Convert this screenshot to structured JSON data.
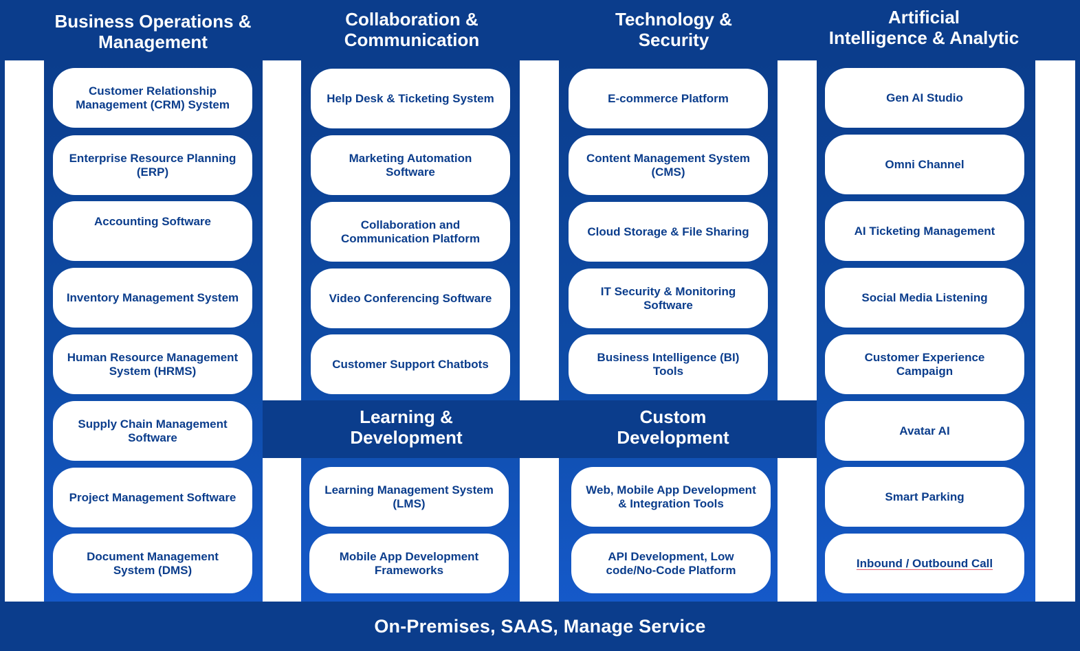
{
  "columns": {
    "business": {
      "title": "Business Operations &\nManagement",
      "items": [
        "Customer Relationship Management (CRM) System",
        "Enterprise Resource Planning (ERP)",
        "Accounting Software",
        "Inventory Management System",
        "Human Resource Management System (HRMS)",
        "Supply Chain Management Software",
        "Project Management Software",
        "Document Management System (DMS)"
      ]
    },
    "collaboration": {
      "title": "Collaboration &\nCommunication",
      "items": [
        "Help Desk & Ticketing System",
        "Marketing Automation Software",
        "Collaboration and Communication Platform",
        "Video Conferencing Software",
        "Customer Support Chatbots"
      ]
    },
    "technology": {
      "title": "Technology &\nSecurity",
      "items": [
        "E-commerce Platform",
        "Content Management System (CMS)",
        "Cloud Storage & File Sharing",
        "IT Security & Monitoring Software",
        "Business Intelligence (BI) Tools"
      ]
    },
    "ai": {
      "title": "Artificial\nIntelligence & Analytic",
      "items": [
        "Gen AI Studio",
        "Omni Channel",
        "AI Ticketing Management",
        "Social Media Listening",
        "Customer Experience Campaign",
        "Avatar AI",
        "Smart Parking",
        "Inbound / Outbound Call"
      ]
    }
  },
  "learning": {
    "title": "Learning &\nDevelopment",
    "items": [
      "Learning Management System (LMS)",
      "Mobile App Development Frameworks"
    ]
  },
  "custom": {
    "title": "Custom\nDevelopment",
    "items": [
      "Web, Mobile App Development & Integration Tools",
      "API Development, Low code/No-Code Platform"
    ]
  },
  "footer": {
    "text": "On-Premises, SAAS, Manage Service"
  },
  "colors": {
    "primary": "#0b3d8c",
    "strip_bottom": "#1559c9",
    "pill": "#ffffff",
    "underline": "#e05a6a"
  }
}
